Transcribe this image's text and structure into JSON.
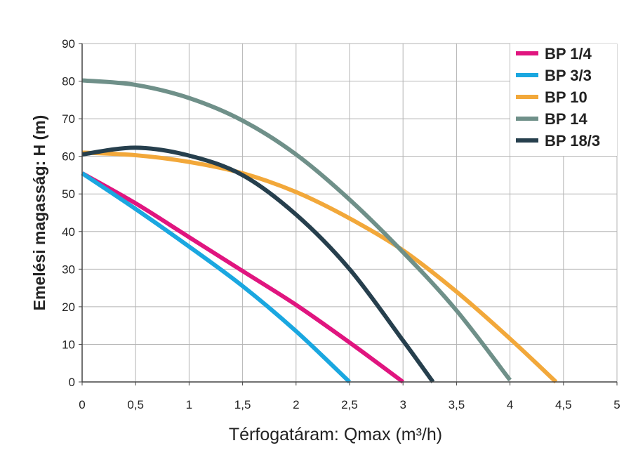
{
  "chart_data": {
    "type": "line",
    "title": "",
    "xlabel": "Térfogatáram: Qmax (m³/h)",
    "ylabel": "Emelési magasság: H (m)",
    "xlim": [
      0,
      5
    ],
    "ylim": [
      0,
      90
    ],
    "xticks": [
      0,
      0.5,
      1,
      1.5,
      2,
      2.5,
      3,
      3.5,
      4,
      4.5,
      5
    ],
    "xtick_labels": [
      "0",
      "0,5",
      "1",
      "1,5",
      "2",
      "2,5",
      "3",
      "3,5",
      "4",
      "4,5",
      "5"
    ],
    "yticks": [
      0,
      10,
      20,
      30,
      40,
      50,
      60,
      70,
      80,
      90
    ],
    "ytick_labels": [
      "0",
      "10",
      "20",
      "30",
      "40",
      "50",
      "60",
      "70",
      "80",
      "90"
    ],
    "grid": true,
    "legend_position": "top-right",
    "series": [
      {
        "name": "BP 1/4",
        "color": "#e0157f",
        "x": [
          0,
          0.5,
          1,
          1.5,
          2,
          2.5,
          3
        ],
        "y": [
          55.5,
          47.5,
          38.5,
          29.5,
          20.5,
          10.5,
          0
        ]
      },
      {
        "name": "BP 3/3",
        "color": "#1aa7e0",
        "x": [
          0,
          0.5,
          1,
          1.5,
          2,
          2.5
        ],
        "y": [
          55.5,
          46,
          36,
          25.5,
          13.5,
          0
        ]
      },
      {
        "name": "BP 10",
        "color": "#f2a83a",
        "x": [
          0,
          0.5,
          1,
          1.5,
          2,
          2.5,
          3,
          3.5,
          4,
          4.43
        ],
        "y": [
          61,
          60.3,
          58.5,
          55.5,
          50.5,
          43.5,
          35,
          24,
          11.5,
          0
        ]
      },
      {
        "name": "BP 14",
        "color": "#6f9089",
        "x": [
          0,
          0.5,
          1,
          1.5,
          2,
          2.5,
          3,
          3.5,
          4
        ],
        "y": [
          80.2,
          79,
          75.5,
          69.5,
          60.5,
          48.5,
          34.5,
          19,
          0.5
        ]
      },
      {
        "name": "BP 18/3",
        "color": "#263f4d",
        "x": [
          0,
          0.5,
          1,
          1.5,
          2,
          2.5,
          3,
          3.28
        ],
        "y": [
          60.5,
          62.3,
          60.2,
          55,
          44.5,
          30,
          11,
          0
        ]
      }
    ]
  }
}
